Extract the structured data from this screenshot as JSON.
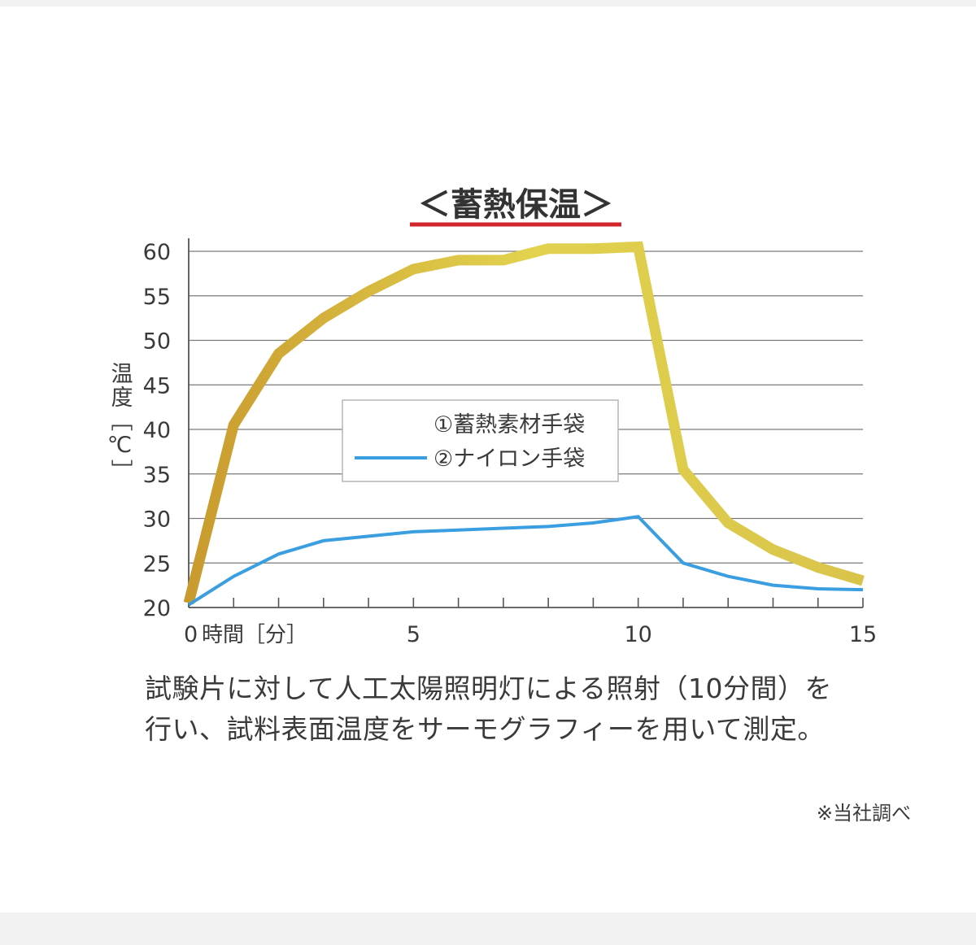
{
  "chart_data": {
    "type": "line",
    "title": "＜蓄熱保温＞",
    "xlabel": "時間［分］",
    "ylabel": "温度［℃］",
    "xlim": [
      0,
      15
    ],
    "ylim": [
      20,
      60
    ],
    "x_ticks": [
      0,
      5,
      10,
      15
    ],
    "y_ticks": [
      20,
      25,
      30,
      35,
      40,
      45,
      50,
      55,
      60
    ],
    "grid": "horizontal",
    "legend_position": "center",
    "series": [
      {
        "name": "①蓄熱素材手袋",
        "color": "#d6c446",
        "x": [
          0,
          1,
          2,
          3,
          4,
          5,
          6,
          7,
          8,
          9,
          10,
          11,
          12,
          13,
          14,
          15
        ],
        "values": [
          20.5,
          40.5,
          48.5,
          52.5,
          55.5,
          58,
          59,
          59,
          60.3,
          60.3,
          60.5,
          35.5,
          29.5,
          26.5,
          24.5,
          23
        ]
      },
      {
        "name": "②ナイロン手袋",
        "color": "#3a9ee0",
        "x": [
          0,
          1,
          2,
          3,
          4,
          5,
          6,
          7,
          8,
          9,
          10,
          11,
          12,
          13,
          14,
          15
        ],
        "values": [
          20.3,
          23.5,
          26,
          27.5,
          28,
          28.5,
          28.7,
          28.9,
          29.1,
          29.5,
          30.2,
          25,
          23.5,
          22.5,
          22.1,
          22
        ]
      }
    ]
  },
  "caption": {
    "line1": "試験片に対して人工太陽照明灯による照射（10分間）を",
    "line2": "行い、試料表面温度をサーモグラフィーを用いて測定。"
  },
  "source_note": "※当社調べ"
}
